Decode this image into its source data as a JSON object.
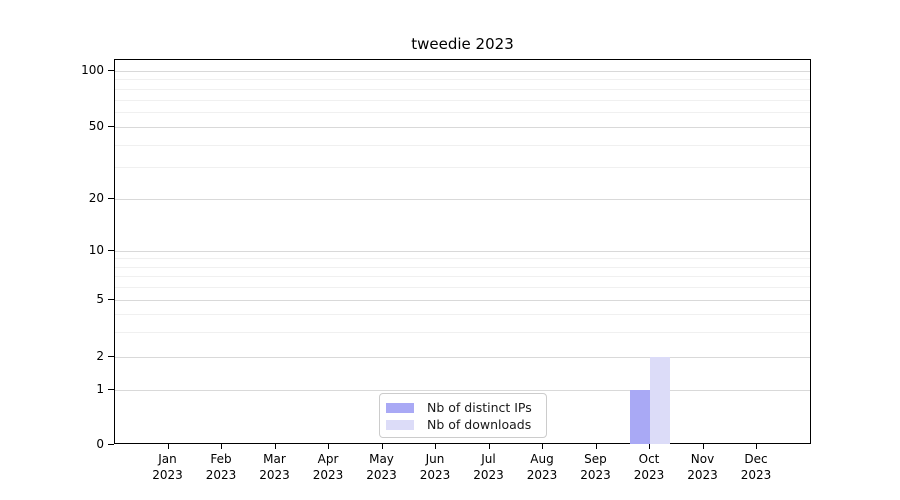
{
  "chart_data": {
    "type": "bar",
    "title": "tweedie 2023",
    "categories": [
      "Jan 2023",
      "Feb 2023",
      "Mar 2023",
      "Apr 2023",
      "May 2023",
      "Jun 2023",
      "Jul 2023",
      "Aug 2023",
      "Sep 2023",
      "Oct 2023",
      "Nov 2023",
      "Dec 2023"
    ],
    "series": [
      {
        "name": "Nb of distinct IPs",
        "color": "#a9a9f5",
        "values": [
          0,
          0,
          0,
          0,
          0,
          0,
          0,
          0,
          0,
          1,
          0,
          0
        ]
      },
      {
        "name": "Nb of downloads",
        "color": "#dcdcf8",
        "values": [
          0,
          0,
          0,
          0,
          0,
          0,
          0,
          0,
          0,
          2,
          0,
          0
        ]
      }
    ],
    "xlabel": "",
    "ylabel": "",
    "yscale": "symlog",
    "ylim": [
      0,
      115
    ],
    "yticks": [
      0,
      1,
      2,
      5,
      10,
      20,
      50,
      100
    ],
    "yticks_minor": [
      3,
      4,
      6,
      7,
      8,
      9,
      30,
      40,
      60,
      70,
      80,
      90
    ],
    "grid": "horizontal major+minor",
    "legend_position": "lower center inside",
    "colors": {
      "major_grid": "#d9d9d9",
      "minor_grid": "#f0f0f0",
      "axis": "#000000",
      "legend_border": "#cccccc",
      "background": "#ffffff"
    }
  }
}
